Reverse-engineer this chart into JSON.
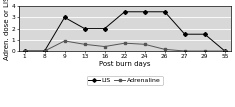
{
  "x_labels": [
    "1",
    "8",
    "9",
    "13",
    "16",
    "22",
    "24",
    "26",
    "27",
    "29",
    "55"
  ],
  "x_positions": [
    0,
    1,
    2,
    3,
    4,
    5,
    6,
    7,
    8,
    9,
    10
  ],
  "lis_x": [
    0,
    1,
    2,
    3,
    4,
    5,
    6,
    7,
    8,
    9,
    10
  ],
  "lis_values": [
    0,
    0,
    3,
    2,
    2,
    3.5,
    3.5,
    3.5,
    1.5,
    1.5,
    0
  ],
  "adrenaline_x": [
    0,
    1,
    2,
    3,
    4,
    5,
    6,
    7,
    8,
    9,
    10
  ],
  "adrenaline_values": [
    0,
    0,
    0.9,
    0.6,
    0.4,
    0.7,
    0.6,
    0.15,
    0.0,
    0.0,
    0.0
  ],
  "y_ticks": [
    0,
    1,
    2,
    3,
    4
  ],
  "xlabel": "Post burn days",
  "ylabel": "Adren. dose or LIS",
  "ylim": [
    0,
    4
  ],
  "xlim": [
    -0.3,
    10.3
  ],
  "lis_color": "#000000",
  "adrenaline_color": "#555555",
  "lis_marker": "D",
  "adrenaline_marker": "s",
  "legend_labels": [
    "LIS",
    "Adrenaline"
  ],
  "bg_color": "#d8d8d8",
  "axis_fontsize": 5,
  "tick_fontsize": 4.2,
  "legend_fontsize": 4.5
}
